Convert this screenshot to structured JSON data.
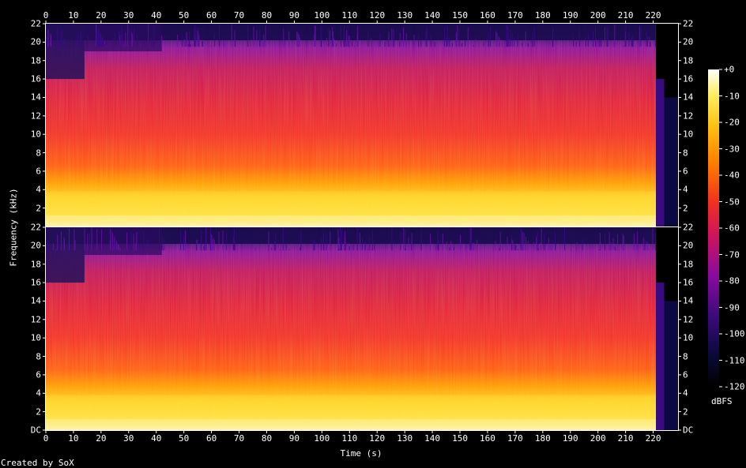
{
  "chart_data": {
    "type": "heatmap",
    "channels": 2,
    "xlabel": "Time (s)",
    "ylabel": "Frequency (kHz)",
    "x_ticks": [
      0,
      10,
      20,
      30,
      40,
      50,
      60,
      70,
      80,
      90,
      100,
      110,
      120,
      130,
      140,
      150,
      160,
      170,
      180,
      190,
      200,
      210,
      220
    ],
    "y_ticks_top": [
      "2",
      "4",
      "6",
      "8",
      "10",
      "12",
      "14",
      "16",
      "18",
      "20",
      "22"
    ],
    "y_ticks_bottom": [
      "DC",
      "2",
      "4",
      "6",
      "8",
      "10",
      "12",
      "14",
      "16",
      "18",
      "20",
      "22"
    ],
    "xlim": [
      0,
      229
    ],
    "ylim_khz": [
      0,
      22
    ],
    "colorbar": {
      "unit": "dBFS",
      "ticks": [
        "+0",
        "-10",
        "-20",
        "-30",
        "-40",
        "-50",
        "-60",
        "-70",
        "-80",
        "-90",
        "-100",
        "-110",
        "-120"
      ],
      "range": [
        -120,
        0
      ]
    },
    "credit": "Created by SoX"
  }
}
